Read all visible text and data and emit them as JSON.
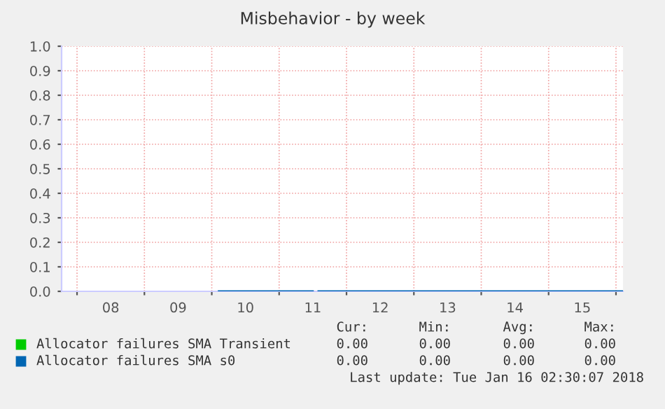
{
  "chart_data": {
    "type": "line",
    "title": "Misbehavior - by week",
    "xlim": [
      "2018-01-07T18:30",
      "2018-01-16T02:30"
    ],
    "xticks": [
      {
        "value": "2018-01-08T00:00",
        "label": null
      },
      {
        "value": "2018-01-08T12:00",
        "label": "08"
      },
      {
        "value": "2018-01-09T00:00",
        "label": null
      },
      {
        "value": "2018-01-09T12:00",
        "label": "09"
      },
      {
        "value": "2018-01-10T00:00",
        "label": null
      },
      {
        "value": "2018-01-10T12:00",
        "label": "10"
      },
      {
        "value": "2018-01-11T00:00",
        "label": null
      },
      {
        "value": "2018-01-11T12:00",
        "label": "11"
      },
      {
        "value": "2018-01-12T00:00",
        "label": null
      },
      {
        "value": "2018-01-12T12:00",
        "label": "12"
      },
      {
        "value": "2018-01-13T00:00",
        "label": null
      },
      {
        "value": "2018-01-13T12:00",
        "label": "13"
      },
      {
        "value": "2018-01-14T00:00",
        "label": null
      },
      {
        "value": "2018-01-14T12:00",
        "label": "14"
      },
      {
        "value": "2018-01-15T00:00",
        "label": null
      },
      {
        "value": "2018-01-15T12:00",
        "label": "15"
      },
      {
        "value": "2018-01-16T00:00",
        "label": null
      }
    ],
    "ylim": [
      0.0,
      1.0
    ],
    "yticks": [
      {
        "value": 0,
        "label": "0.0"
      },
      0.1,
      0.2,
      0.3,
      0.4,
      0.5,
      0.6,
      0.7,
      0.8,
      0.9,
      {
        "value": 1,
        "label": "1.0"
      }
    ],
    "grid": true,
    "legend": "bottom left",
    "series": [
      {
        "name": "Allocator failures SMA Transient",
        "color": "#00cc00"
      },
      {
        "name": "Allocator failures SMA s0",
        "color": "#0066b3",
        "x": [
          "2018-01-10T02:30",
          "2018-01-11T12:00",
          "2018-01-11T13:00",
          "2018-01-11T14:00",
          "2018-01-16T02:30"
        ],
        "values": [
          0,
          0,
          null,
          0,
          0
        ]
      }
    ],
    "annotations": [
      "Cur:",
      "Min:",
      "Avg:",
      "Max:",
      "0.00",
      "0.00",
      "0.00",
      "0.00",
      "0.00",
      "0.00",
      "0.00",
      "0.00",
      "Last update: Tue Jan 16 02:30:07 2018"
    ]
  }
}
